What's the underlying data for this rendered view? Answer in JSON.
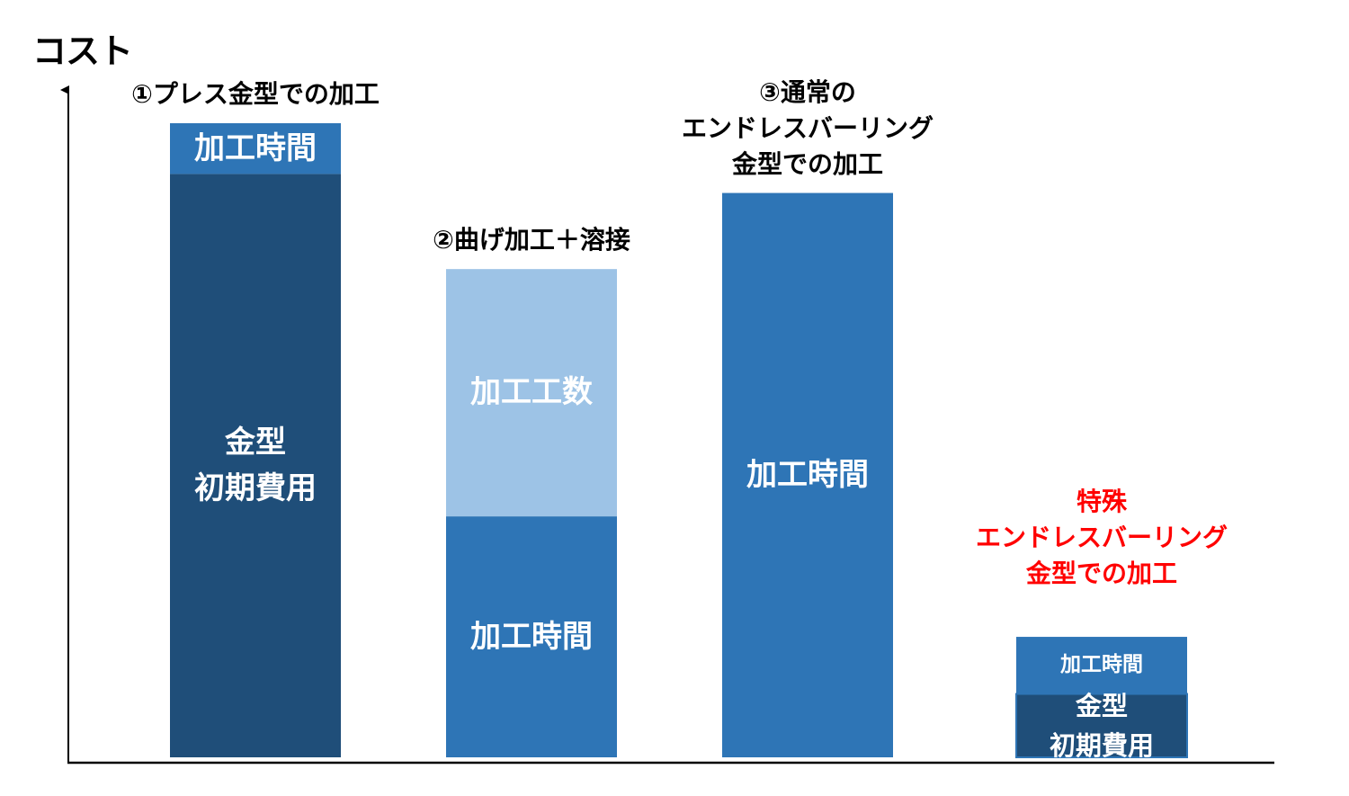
{
  "chart_data": {
    "type": "bar",
    "stacked": true,
    "ylabel": "コスト",
    "axis_ticks": false,
    "grid": false,
    "legend": "none",
    "unit_note": "relative cost, no numeric scale printed; values estimated on a 0–100 scale",
    "ylim": [
      0,
      100
    ],
    "colors": {
      "mold": "#1f4e79",
      "time": "#2e75b6",
      "labor": "#9dc3e6",
      "special_title": "#ff0000"
    },
    "bars": [
      {
        "title": "①プレス金型での加工",
        "title_color": "#000000",
        "segments": [
          {
            "label": "金型\n初期費用",
            "value": 92,
            "color": "#1f4e79"
          },
          {
            "label": "加工時間",
            "value": 8,
            "color": "#2e75b6"
          }
        ]
      },
      {
        "title": "②曲げ加工＋溶接",
        "title_color": "#000000",
        "segments": [
          {
            "label": "加工時間",
            "value": 38,
            "color": "#2e75b6"
          },
          {
            "label": "加工工数",
            "value": 39,
            "color": "#9dc3e6"
          }
        ]
      },
      {
        "title": "③通常の\nエンドレスバーリング\n金型での加工",
        "title_color": "#000000",
        "segments": [
          {
            "label": "加工時間",
            "value": 89,
            "color": "#2e75b6"
          }
        ]
      },
      {
        "title": "特殊\nエンドレスバーリング\n金型での加工",
        "title_color": "#ff0000",
        "segments": [
          {
            "label": "金型\n初期費用",
            "value": 10,
            "color": "#1f4e79"
          },
          {
            "label": "加工時間",
            "value": 9,
            "color": "#2e75b6"
          }
        ]
      }
    ]
  }
}
